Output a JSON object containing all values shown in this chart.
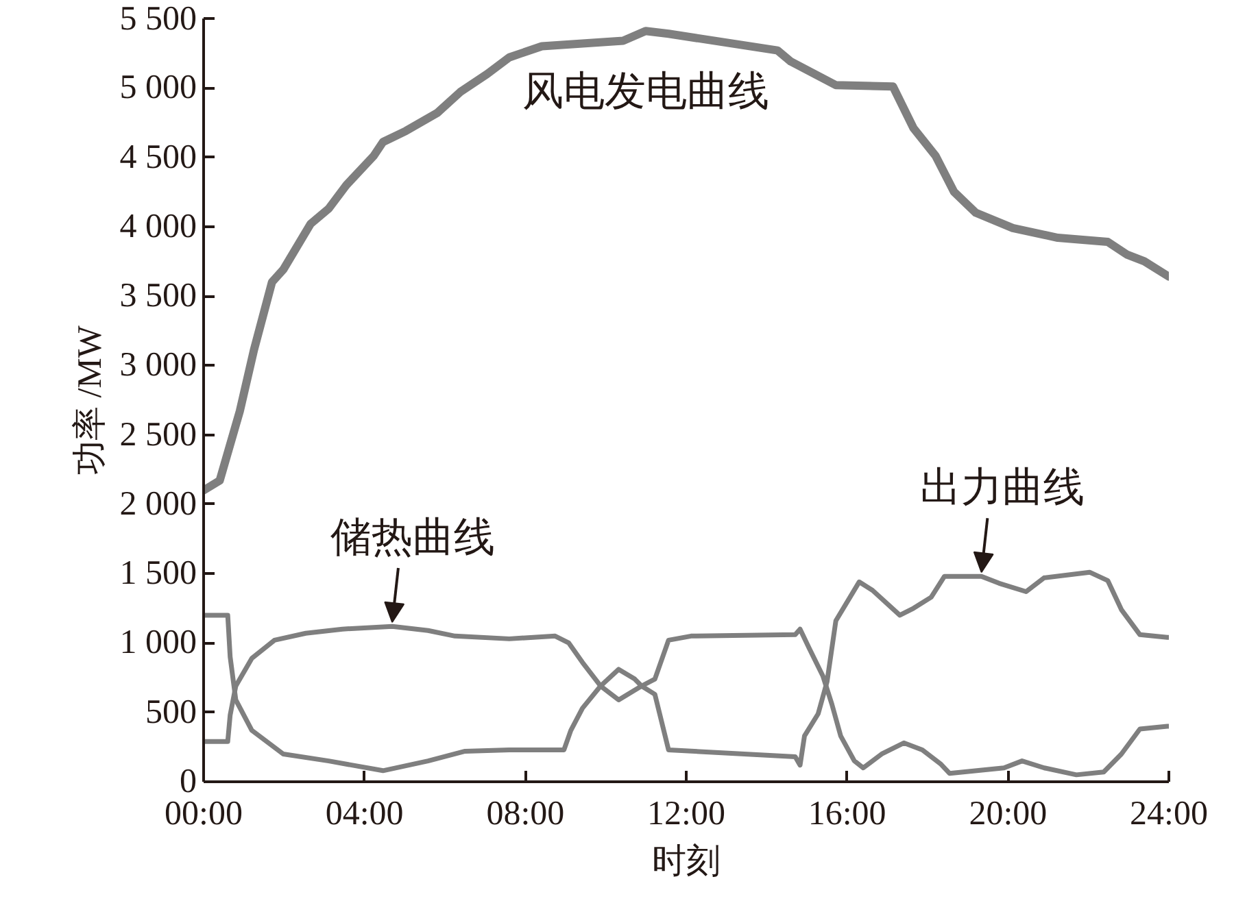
{
  "chart_data": {
    "type": "line",
    "xlabel": "时刻",
    "ylabel": "功率 /MW",
    "xlim": [
      0,
      24
    ],
    "ylim": [
      0,
      5500
    ],
    "xticks": [
      {
        "value": 0,
        "label": "00:00"
      },
      {
        "value": 4,
        "label": "04:00"
      },
      {
        "value": 8,
        "label": "08:00"
      },
      {
        "value": 12,
        "label": "12:00"
      },
      {
        "value": 16,
        "label": "16:00"
      },
      {
        "value": 20,
        "label": "20:00"
      },
      {
        "value": 24,
        "label": "24:00"
      }
    ],
    "yticks": [
      0,
      500,
      {
        "value": 1000,
        "label": "1 000"
      },
      {
        "value": 1500,
        "label": "1 500"
      },
      {
        "value": 2000,
        "label": "2 000"
      },
      {
        "value": 2500,
        "label": "2 500"
      },
      {
        "value": 3000,
        "label": "3 000"
      },
      {
        "value": 3500,
        "label": "3 500"
      },
      {
        "value": 4000,
        "label": "4 000"
      },
      {
        "value": 4500,
        "label": "4 500"
      },
      {
        "value": 5000,
        "label": "5 000"
      },
      {
        "value": 5500,
        "label": "5 500"
      }
    ],
    "grid": false,
    "marker": "none",
    "line_style": "solid",
    "series": [
      {
        "name": "风电发电曲线",
        "color": "#7f7f7f",
        "x": [
          0,
          0.4,
          0.9,
          1.25,
          1.7,
          1.98,
          2.66,
          3.11,
          3.55,
          4.23,
          4.46,
          5.03,
          5.81,
          6.38,
          7.05,
          7.6,
          8.41,
          10.43,
          10.99,
          11.56,
          14.27,
          14.6,
          15.72,
          17.14,
          17.65,
          18.2,
          18.66,
          19.2,
          20.12,
          21.24,
          22.48,
          22.95,
          23.39,
          24
        ],
        "values": [
          2100,
          2170,
          2670,
          3110,
          3600,
          3690,
          4020,
          4130,
          4300,
          4510,
          4610,
          4690,
          4820,
          4970,
          5100,
          5220,
          5300,
          5340,
          5410,
          5390,
          5270,
          5190,
          5020,
          5010,
          4710,
          4510,
          4250,
          4100,
          3990,
          3920,
          3890,
          3800,
          3750,
          3640
        ]
      },
      {
        "color": "#7f7f7f",
        "x": [
          0,
          0.6,
          0.66,
          0.8,
          1.2,
          1.76,
          2.54,
          3.45,
          4.69,
          5.58,
          6.25,
          7.6,
          8.74,
          9.08,
          9.42,
          9.87,
          10.32,
          10.72,
          10.89,
          11.22,
          11.56,
          12.12,
          14.71,
          14.83,
          15.06,
          15.4,
          15.62,
          15.84,
          16.18,
          16.4,
          16.86,
          17.41,
          17.87,
          18.32,
          18.55,
          19.9,
          20.35,
          20.9,
          21.7,
          22.38,
          22.82,
          23.28,
          23.96,
          24
        ],
        "values": [
          290,
          290,
          480,
          690,
          890,
          1020,
          1070,
          1100,
          1120,
          1090,
          1050,
          1030,
          1050,
          1000,
          860,
          690,
          590,
          660,
          690,
          740,
          1020,
          1050,
          1060,
          1100,
          960,
          760,
          560,
          330,
          150,
          100,
          200,
          280,
          230,
          130,
          60,
          100,
          150,
          100,
          50,
          70,
          200,
          380,
          400,
          400
        ]
      },
      {
        "color": "#7f7f7f",
        "x": [
          0,
          0.6,
          0.66,
          0.8,
          1.2,
          1.98,
          3.11,
          4.46,
          5.58,
          6.5,
          7.6,
          8.96,
          9.13,
          9.42,
          9.87,
          10.32,
          10.72,
          10.89,
          11.22,
          11.56,
          14.71,
          14.83,
          14.94,
          15.28,
          15.5,
          15.72,
          16.3,
          16.63,
          17.31,
          17.65,
          18.09,
          18.42,
          19.34,
          19.78,
          20.45,
          20.9,
          22.03,
          22.48,
          22.82,
          23.28,
          23.96,
          24
        ],
        "values": [
          1200,
          1200,
          900,
          590,
          370,
          200,
          150,
          80,
          150,
          220,
          230,
          230,
          370,
          530,
          690,
          810,
          740,
          690,
          630,
          230,
          180,
          120,
          330,
          490,
          720,
          1160,
          1440,
          1380,
          1200,
          1250,
          1330,
          1480,
          1480,
          1430,
          1370,
          1470,
          1510,
          1450,
          1240,
          1060,
          1040,
          1040
        ]
      }
    ],
    "annotations": [
      {
        "text": "储热曲线",
        "x": 4.69,
        "y": 1120
      },
      {
        "text": "出力曲线",
        "x": 19.34,
        "y": 1480
      }
    ]
  }
}
